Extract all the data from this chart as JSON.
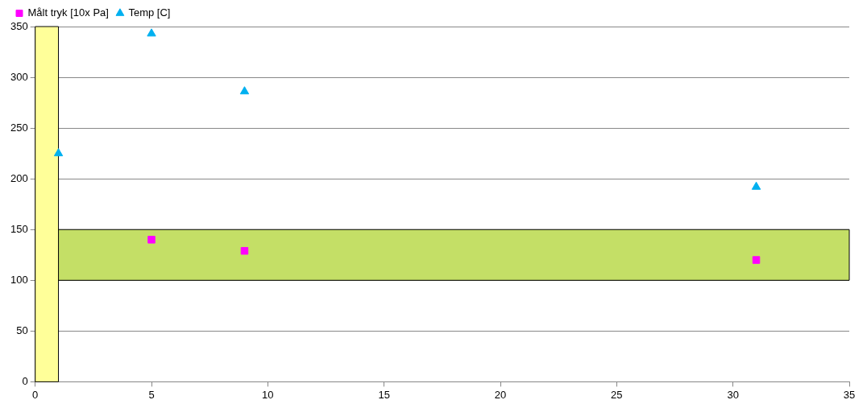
{
  "chart_data": {
    "type": "scatter",
    "legend": "top left",
    "grid": "y",
    "xlim": [
      0,
      35
    ],
    "xticks": [
      0,
      5,
      10,
      15,
      20,
      25,
      30,
      35
    ],
    "ylim": [
      0,
      350
    ],
    "yticks": [
      0,
      50,
      100,
      150,
      200,
      250,
      300,
      350
    ],
    "bands": [
      {
        "axis": "y",
        "from": 100,
        "to": 150,
        "color": "#c4df66"
      },
      {
        "axis": "x",
        "from": 0,
        "to": 1,
        "color": "#ffff99"
      }
    ],
    "series": [
      {
        "name": "Målt tryk [10x Pa]",
        "color": "#ff00ff",
        "marker": "square",
        "x": [
          5,
          9,
          31
        ],
        "values": [
          140,
          129,
          120
        ]
      },
      {
        "name": "Temp [C]",
        "color": "#00b0f0",
        "marker": "triangle",
        "x": [
          1,
          5,
          9,
          31
        ],
        "values": [
          225,
          343,
          286,
          192
        ]
      }
    ]
  }
}
